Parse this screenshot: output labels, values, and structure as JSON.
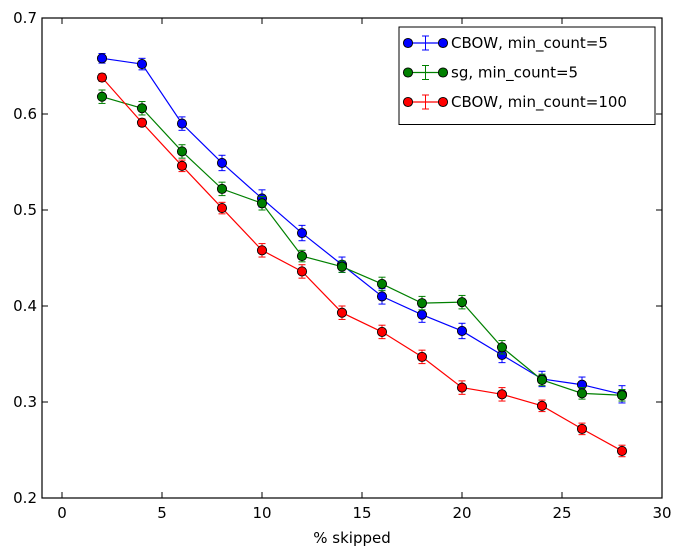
{
  "chart_data": {
    "type": "line",
    "title": "",
    "xlabel": "% skipped",
    "ylabel": "",
    "xlim": [
      -1,
      30
    ],
    "ylim": [
      0.2,
      0.7
    ],
    "xticks": [
      0,
      5,
      10,
      15,
      20,
      25,
      30
    ],
    "yticks": [
      0.2,
      0.3,
      0.4,
      0.5,
      0.6,
      0.7
    ],
    "xtick_labels": [
      "0",
      "5",
      "10",
      "15",
      "20",
      "25",
      "30"
    ],
    "ytick_labels": [
      "0.2",
      "0.3",
      "0.4",
      "0.5",
      "0.6",
      "0.7"
    ],
    "grid": false,
    "legend_position": "top-right",
    "x": [
      2,
      4,
      6,
      8,
      10,
      12,
      14,
      16,
      18,
      20,
      22,
      24,
      26,
      28
    ],
    "series": [
      {
        "name": "CBOW, min_count=5",
        "color": "#0000ff",
        "values": [
          0.658,
          0.652,
          0.59,
          0.549,
          0.512,
          0.476,
          0.443,
          0.41,
          0.391,
          0.374,
          0.349,
          0.324,
          0.318,
          0.308
        ],
        "errors": [
          0.005,
          0.006,
          0.007,
          0.008,
          0.009,
          0.008,
          0.008,
          0.008,
          0.008,
          0.008,
          0.008,
          0.008,
          0.008,
          0.009
        ]
      },
      {
        "name": "sg, min_count=5",
        "color": "#008000",
        "values": [
          0.618,
          0.606,
          0.561,
          0.522,
          0.507,
          0.452,
          0.441,
          0.423,
          0.403,
          0.404,
          0.357,
          0.323,
          0.309,
          0.307
        ],
        "errors": [
          0.007,
          0.007,
          0.007,
          0.007,
          0.007,
          0.006,
          0.006,
          0.007,
          0.007,
          0.007,
          0.007,
          0.006,
          0.006,
          0.006
        ]
      },
      {
        "name": "CBOW, min_count=100",
        "color": "#ff0000",
        "values": [
          0.638,
          0.591,
          0.546,
          0.502,
          0.458,
          0.436,
          0.393,
          0.373,
          0.347,
          0.315,
          0.308,
          0.296,
          0.272,
          0.249
        ],
        "errors": [
          0.004,
          0.004,
          0.006,
          0.006,
          0.007,
          0.007,
          0.007,
          0.007,
          0.007,
          0.007,
          0.007,
          0.006,
          0.006,
          0.006
        ]
      }
    ]
  }
}
